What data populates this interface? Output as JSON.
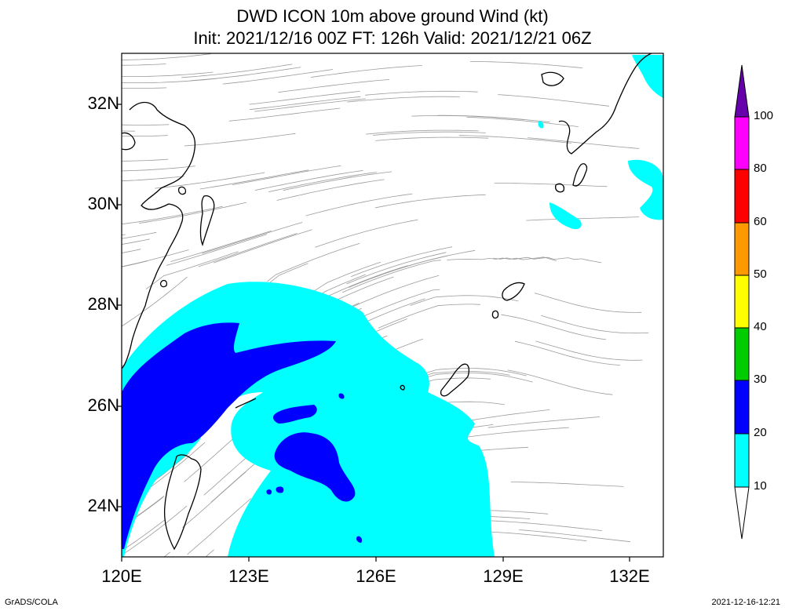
{
  "title_line1": "DWD ICON 10m above ground Wind (kt)",
  "title_line2": "Init: 2021/12/16 00Z  FT: 126h  Valid: 2021/12/21 06Z",
  "lat_labels": [
    "32N",
    "30N",
    "28N",
    "26N",
    "24N"
  ],
  "lon_labels": [
    "120E",
    "123E",
    "126E",
    "129E",
    "132E"
  ],
  "colorbar": {
    "labels": [
      "10",
      "20",
      "30",
      "40",
      "50",
      "60",
      "80",
      "100"
    ],
    "colors": [
      "#00ffff",
      "#0000ff",
      "#00cc00",
      "#ffff00",
      "#ff9900",
      "#ff0000",
      "#ff00ff",
      "#6600aa"
    ]
  },
  "footer_left": "GrADS/COLA",
  "footer_right": "2021-12-16-12:21"
}
